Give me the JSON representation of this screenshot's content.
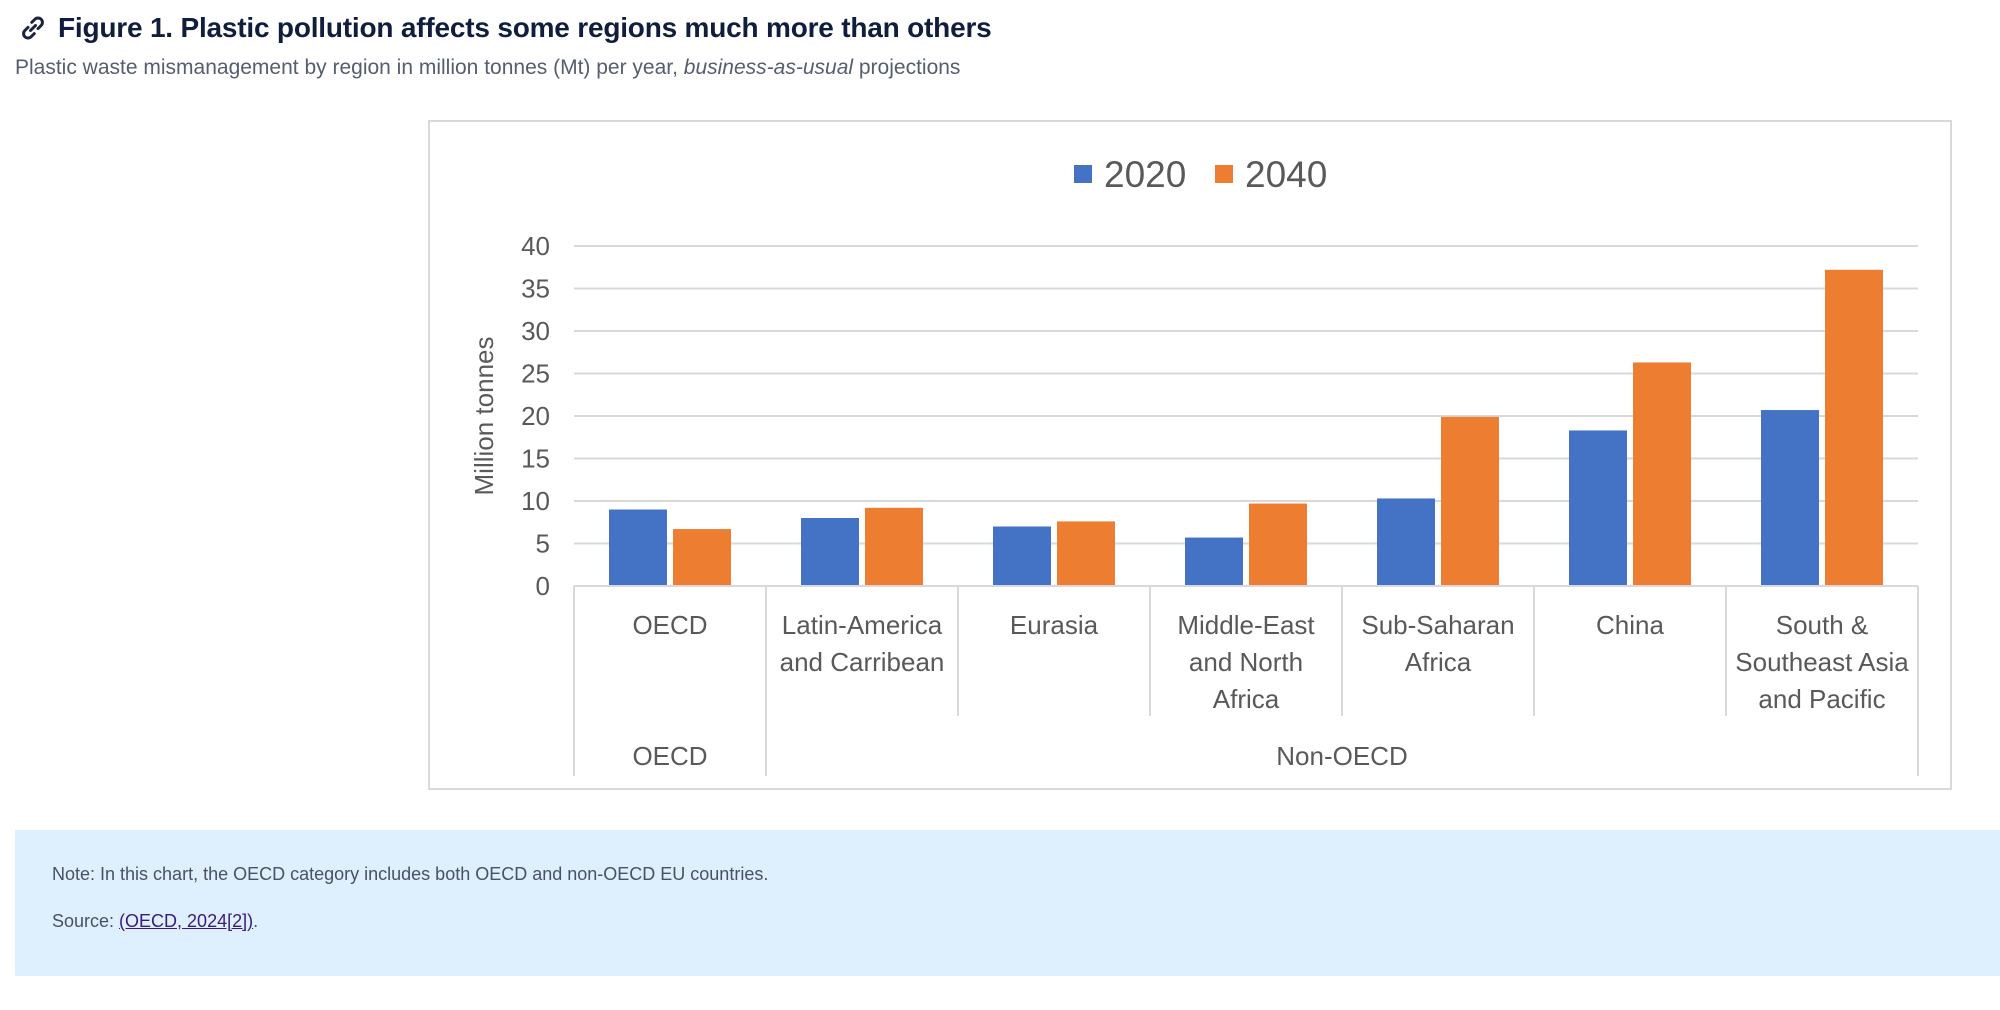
{
  "figure": {
    "title": "Figure 1. Plastic pollution affects some regions much more than others",
    "subtitle_pre": "Plastic waste mismanagement by region in million tonnes (Mt) per year, ",
    "subtitle_em": "business-as-usual",
    "subtitle_post": " projections"
  },
  "note": {
    "text": "Note: In this chart, the OECD category includes both OECD and non-OECD EU countries.",
    "source_label": "Source: ",
    "source_link": "(OECD, 2024[2])",
    "source_end": "."
  },
  "colors": {
    "series_2020": "#4472c4",
    "series_2040": "#ed7d31",
    "grid": "#d9d9d9",
    "text": "#595959"
  },
  "chart_data": {
    "type": "bar",
    "title": "",
    "ylabel": "Million tonnes",
    "xlabel": "",
    "ylim": [
      0,
      40
    ],
    "yticks": [
      0,
      5,
      10,
      15,
      20,
      25,
      30,
      35,
      40
    ],
    "grid": true,
    "legend_position": "top-center",
    "categories": [
      "OECD",
      "Latin-America and Carribean",
      "Eurasia",
      "Middle-East and North Africa",
      "Sub-Saharan Africa",
      "China",
      "South & Southeast Asia and Pacific"
    ],
    "category_lines": [
      [
        "OECD"
      ],
      [
        "Latin-America",
        "and Carribean"
      ],
      [
        "Eurasia"
      ],
      [
        "Middle-East",
        "and North",
        "Africa"
      ],
      [
        "Sub-Saharan",
        "Africa"
      ],
      [
        "China"
      ],
      [
        "South &",
        "Southeast Asia",
        "and Pacific"
      ]
    ],
    "groups": [
      {
        "label": "OECD",
        "categories": 1
      },
      {
        "label": "Non-OECD",
        "categories": 6
      }
    ],
    "series": [
      {
        "name": "2020",
        "values": [
          9.0,
          8.0,
          7.0,
          5.7,
          10.3,
          18.3,
          20.7
        ]
      },
      {
        "name": "2040",
        "values": [
          6.7,
          9.2,
          7.6,
          9.7,
          19.9,
          26.3,
          37.2
        ]
      }
    ]
  }
}
